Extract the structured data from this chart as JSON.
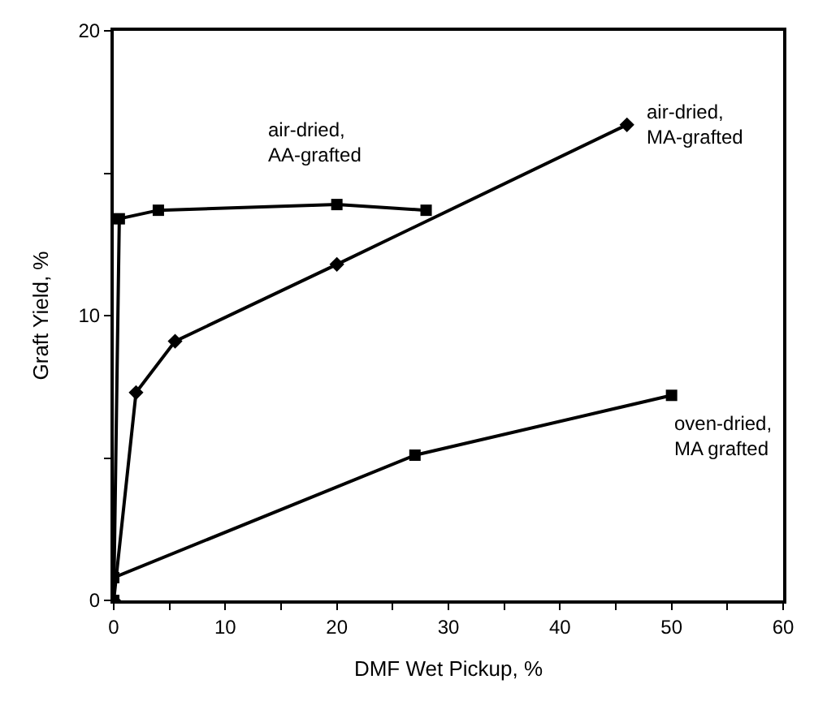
{
  "chart_data": {
    "type": "line",
    "xlabel": "DMF Wet Pickup, %",
    "ylabel": "Graft Yield, %",
    "xlim": [
      0,
      60
    ],
    "ylim": [
      0,
      20
    ],
    "xticks": [
      0,
      {
        "value": 5,
        "label": null
      },
      10,
      {
        "value": 15,
        "label": null
      },
      20,
      {
        "value": 25,
        "label": null
      },
      30,
      {
        "value": 35,
        "label": null
      },
      40,
      {
        "value": 45,
        "label": null
      },
      50,
      {
        "value": 55,
        "label": null
      },
      60
    ],
    "yticks": [
      0,
      {
        "value": 5,
        "label": null
      },
      10,
      {
        "value": 15,
        "label": null
      },
      20
    ],
    "legend": false,
    "series": [
      {
        "name": "air-dried,\nAA-grafted",
        "color": "#000000",
        "marker": "square",
        "x": [
          0,
          0.5,
          4,
          20,
          28
        ],
        "values": [
          0,
          13.4,
          13.7,
          13.9,
          13.7
        ]
      },
      {
        "name": "air-dried,\nMA-grafted",
        "color": "#000000",
        "marker": "diamond",
        "x": [
          0,
          2,
          5.5,
          20,
          46
        ],
        "values": [
          0,
          7.3,
          9.1,
          11.8,
          16.7
        ]
      },
      {
        "name": "oven-dried,\nMA grafted",
        "color": "#000000",
        "marker": "square",
        "x": [
          0,
          27,
          50
        ],
        "values": [
          0.8,
          5.1,
          7.2
        ]
      }
    ]
  }
}
